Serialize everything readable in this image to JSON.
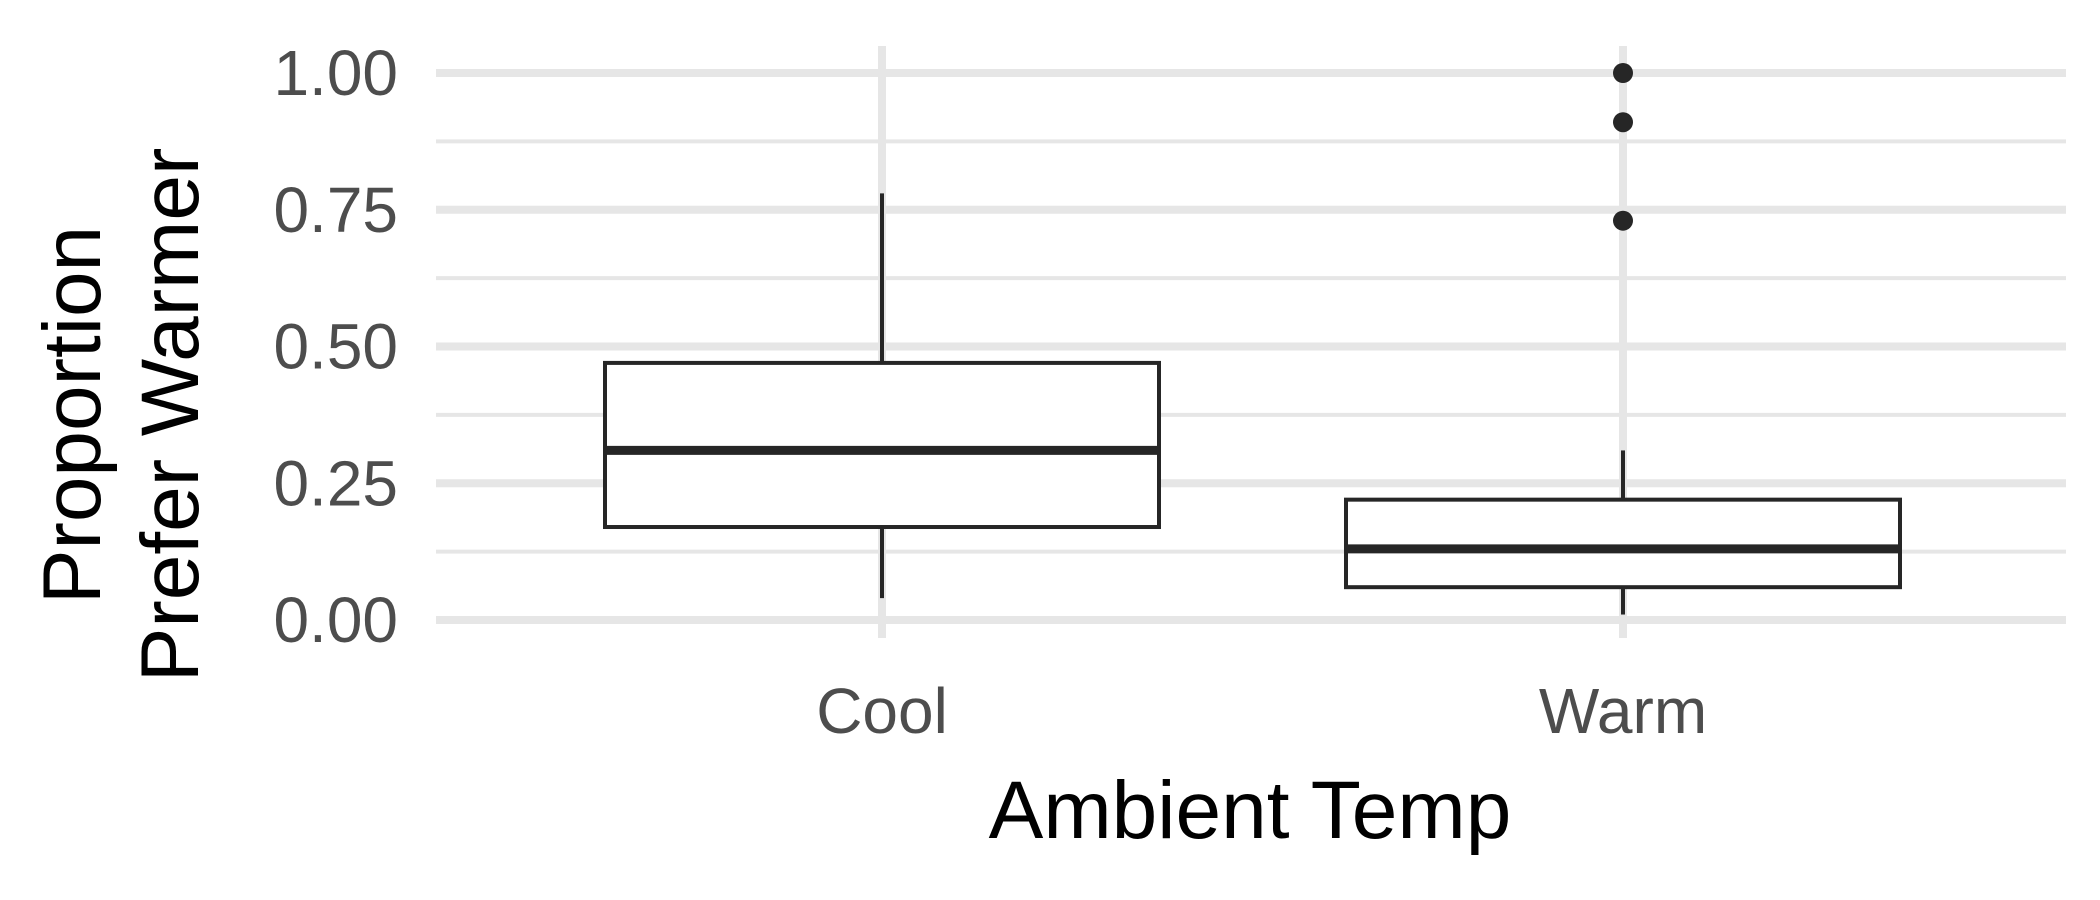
{
  "chart_data": {
    "type": "box",
    "xlabel": "Ambient Temp",
    "ylabel_lines": [
      "Proportion",
      "Prefer Warmer"
    ],
    "categories": [
      "Cool",
      "Warm"
    ],
    "ylim": [
      -0.03,
      1.04
    ],
    "y_ticks": [
      0.0,
      0.25,
      0.5,
      0.75,
      1.0
    ],
    "y_tick_labels": [
      "0.00",
      "0.25",
      "0.50",
      "0.75",
      "1.00"
    ],
    "y_minor_ticks": [
      0.125,
      0.375,
      0.625,
      0.875
    ],
    "grid": true,
    "boxes": [
      {
        "category": "Cool",
        "whisker_low": 0.04,
        "q1": 0.17,
        "median": 0.31,
        "q3": 0.47,
        "whisker_high": 0.78,
        "outliers": []
      },
      {
        "category": "Warm",
        "whisker_low": 0.01,
        "q1": 0.06,
        "median": 0.13,
        "q3": 0.22,
        "whisker_high": 0.31,
        "outliers": [
          0.73,
          0.91,
          1.0
        ]
      }
    ],
    "colors": {
      "grid": "#e6e6e6",
      "box_stroke": "#262626",
      "box_fill": "#ffffff",
      "tick_text": "#4d4d4d",
      "title_text": "#000000"
    }
  }
}
